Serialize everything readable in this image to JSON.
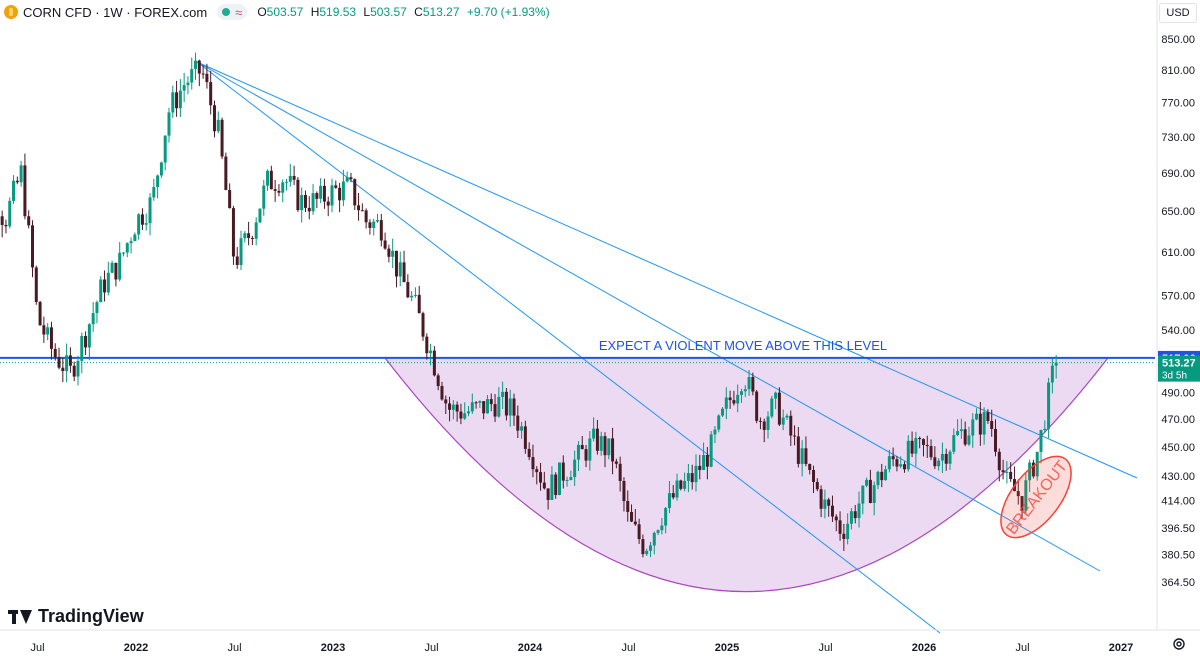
{
  "header": {
    "symbol": "CORN CFD · 1W · FOREX.com",
    "o_label": "O",
    "o_value": "503.57",
    "h_label": "H",
    "h_value": "519.53",
    "l_label": "L",
    "l_value": "503.57",
    "c_label": "C",
    "c_value": "513.27",
    "change": "+9.70 (+1.93%)"
  },
  "currency": "USD",
  "brand": "TradingView",
  "colors": {
    "up": "#089981",
    "down": "#4a1a24",
    "accent": "#2962ff",
    "trendline": "#2196f3",
    "bowl_fill": "#e4cdee",
    "bowl_stroke": "#ab47bc",
    "ellipse": "#f44336"
  },
  "chart_data": {
    "type": "candlestick",
    "title": "CORN CFD · 1W · FOREX.com",
    "scale": "log",
    "ylim": [
      355,
      865
    ],
    "y_ticks": [
      850,
      810,
      770,
      730,
      690,
      650,
      610,
      570,
      540,
      517.06,
      513.27,
      490,
      470,
      450,
      430,
      414,
      396.5,
      380.5,
      364.5
    ],
    "x_ticks": [
      "Jul",
      "2022",
      "Jul",
      "2023",
      "Jul",
      "2024",
      "Jul",
      "2025",
      "Jul",
      "2026",
      "Jul",
      "2027"
    ],
    "levels": [
      {
        "name": "resistance",
        "value": 517.06,
        "label": "517.06",
        "style": "solid"
      },
      {
        "name": "last-price",
        "value": 513.27,
        "label": "513.27",
        "countdown": "3d 5h",
        "style": "dotted"
      }
    ],
    "annotations": [
      "EXPECT A VIOLENT MOVE ABOVE THIS LEVEL",
      "BREAKOUT"
    ],
    "path": [
      [
        "2021-03",
        735
      ],
      [
        "2021-05",
        640
      ],
      [
        "2021-06",
        690
      ],
      [
        "2021-07",
        550
      ],
      [
        "2021-08",
        520
      ],
      [
        "2021-09",
        505
      ],
      [
        "2021-10",
        540
      ],
      [
        "2021-11",
        580
      ],
      [
        "2021-12",
        600
      ],
      [
        "2022-01",
        640
      ],
      [
        "2022-02",
        660
      ],
      [
        "2022-03",
        760
      ],
      [
        "2022-04",
        795
      ],
      [
        "2022-05",
        810
      ],
      [
        "2022-06",
        735
      ],
      [
        "2022-07",
        600
      ],
      [
        "2022-08",
        630
      ],
      [
        "2022-09",
        680
      ],
      [
        "2022-10",
        685
      ],
      [
        "2022-11",
        660
      ],
      [
        "2022-12",
        660
      ],
      [
        "2023-01",
        670
      ],
      [
        "2023-02",
        675
      ],
      [
        "2023-03",
        640
      ],
      [
        "2023-04",
        635
      ],
      [
        "2023-05",
        590
      ],
      [
        "2023-06",
        560
      ],
      [
        "2023-07",
        520
      ],
      [
        "2023-08",
        478
      ],
      [
        "2023-09",
        475
      ],
      [
        "2023-10",
        478
      ],
      [
        "2023-11",
        483
      ],
      [
        "2023-12",
        475
      ],
      [
        "2024-01",
        450
      ],
      [
        "2024-02",
        420
      ],
      [
        "2024-03",
        432
      ],
      [
        "2024-04",
        443
      ],
      [
        "2024-05",
        455
      ],
      [
        "2024-06",
        445
      ],
      [
        "2024-07",
        400
      ],
      [
        "2024-08",
        385
      ],
      [
        "2024-09",
        405
      ],
      [
        "2024-10",
        420
      ],
      [
        "2024-11",
        430
      ],
      [
        "2024-12",
        448
      ],
      [
        "2025-01",
        480
      ],
      [
        "2025-02",
        505
      ],
      [
        "2025-03",
        470
      ],
      [
        "2025-04",
        480
      ],
      [
        "2025-05",
        455
      ],
      [
        "2025-06",
        430
      ],
      [
        "2025-07",
        410
      ],
      [
        "2025-08",
        395
      ],
      [
        "2025-09",
        412
      ],
      [
        "2025-10",
        425
      ],
      [
        "2025-11",
        440
      ],
      [
        "2025-12",
        445
      ],
      [
        "2026-01",
        448
      ],
      [
        "2026-02",
        443
      ],
      [
        "2026-03",
        458
      ],
      [
        "2026-04",
        465
      ],
      [
        "2026-05",
        470
      ],
      [
        "2026-06",
        425
      ],
      [
        "2026-07",
        415
      ],
      [
        "2026-08",
        450
      ],
      [
        "2026-09",
        513
      ]
    ]
  }
}
